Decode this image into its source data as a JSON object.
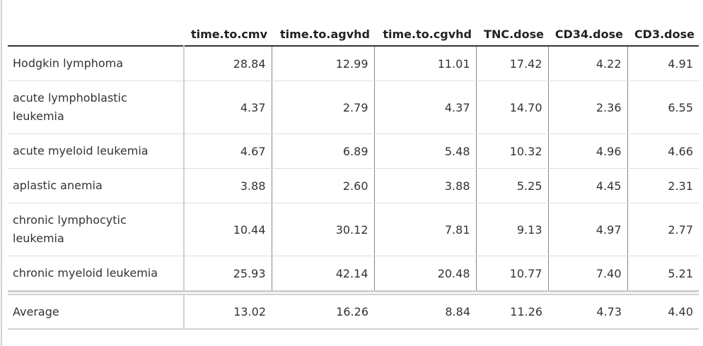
{
  "table": {
    "columns": [
      "",
      "time.to.cmv",
      "time.to.agvhd",
      "time.to.cgvhd",
      "TNC.dose",
      "CD34.dose",
      "CD3.dose"
    ],
    "rows": [
      {
        "name": "Hodgkin lymphoma",
        "values": [
          "28.84",
          "12.99",
          "11.01",
          "17.42",
          "4.22",
          "4.91"
        ]
      },
      {
        "name": "acute lymphoblastic leukemia",
        "values": [
          "4.37",
          "2.79",
          "4.37",
          "14.70",
          "2.36",
          "6.55"
        ]
      },
      {
        "name": "acute myeloid leukemia",
        "values": [
          "4.67",
          "6.89",
          "5.48",
          "10.32",
          "4.96",
          "4.66"
        ]
      },
      {
        "name": "aplastic anemia",
        "values": [
          "3.88",
          "2.60",
          "3.88",
          "5.25",
          "4.45",
          "2.31"
        ]
      },
      {
        "name": "chronic lymphocytic leukemia",
        "values": [
          "10.44",
          "30.12",
          "7.81",
          "9.13",
          "4.97",
          "2.77"
        ]
      },
      {
        "name": "chronic myeloid leukemia",
        "values": [
          "25.93",
          "42.14",
          "20.48",
          "10.77",
          "7.40",
          "5.21"
        ]
      }
    ],
    "footer": {
      "name": "Average",
      "values": [
        "13.02",
        "16.26",
        "8.84",
        "11.26",
        "4.73",
        "4.40"
      ]
    }
  }
}
